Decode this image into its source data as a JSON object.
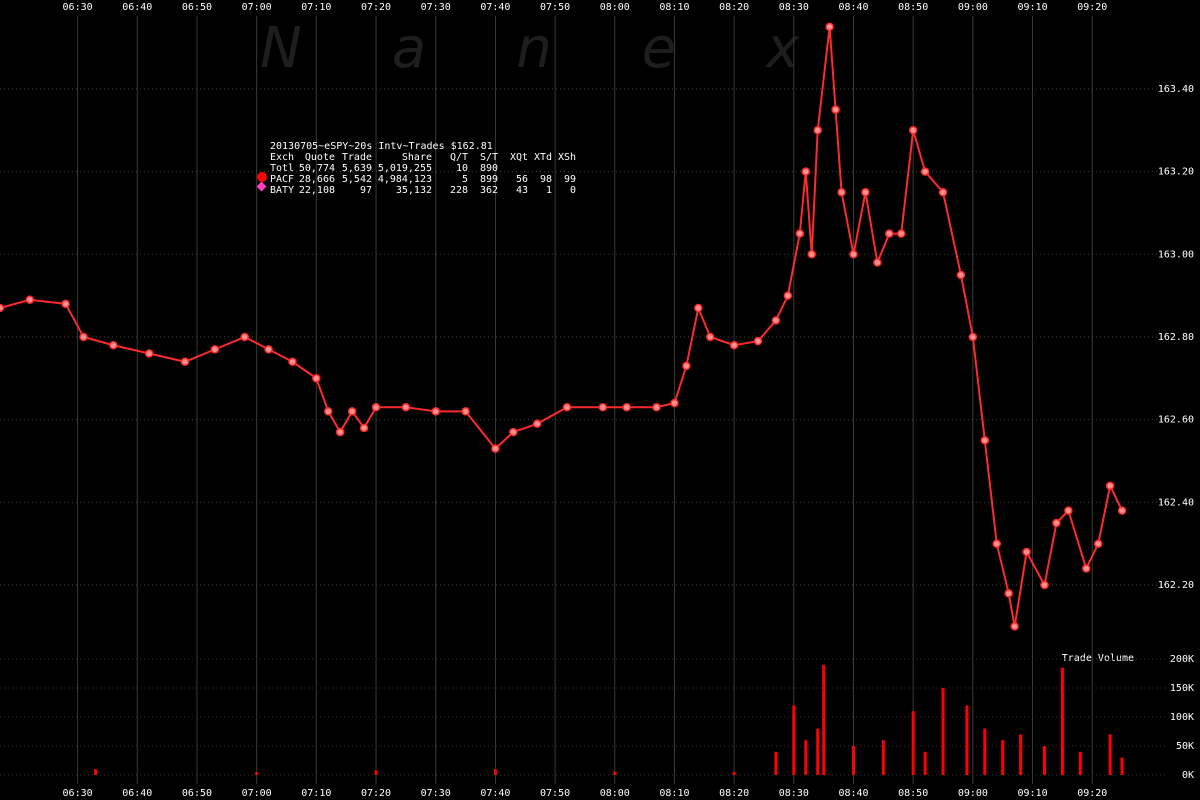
{
  "chart_data": {
    "type": "line",
    "watermark": "Nanex",
    "title": "20130705~eSPY~20s Intv~Trades $162.81",
    "legend_table": {
      "header": [
        "Exch",
        "Quote",
        "Trade",
        "Share",
        "Q/T",
        "S/T",
        "XQt",
        "XTd",
        "XSh"
      ],
      "rows": [
        [
          "Totl",
          "50,774",
          "5,639",
          "5,019,255",
          "10",
          "890"
        ],
        [
          "PACF",
          "28,666",
          "5,542",
          "4,984,123",
          "5",
          "899",
          "56",
          "98",
          "99"
        ],
        [
          "BATY",
          "22,108",
          "97",
          "35,132",
          "228",
          "362",
          "43",
          "1",
          "0"
        ]
      ]
    },
    "xlim": [
      "06:17",
      "09:28"
    ],
    "xticks": [
      "06:30",
      "06:40",
      "06:50",
      "07:00",
      "07:10",
      "07:20",
      "07:30",
      "07:40",
      "07:50",
      "08:00",
      "08:10",
      "08:20",
      "08:30",
      "08:40",
      "08:50",
      "09:00",
      "09:10",
      "09:20"
    ],
    "ylim": [
      162.055,
      163.615
    ],
    "yticks": [
      {
        "value": 162.2,
        "label": "162.20"
      },
      {
        "value": 162.4,
        "label": "162.40"
      },
      {
        "value": 162.6,
        "label": "162.60"
      },
      {
        "value": 162.8,
        "label": "162.80"
      },
      {
        "value": 163.0,
        "label": "163.00"
      },
      {
        "value": 163.2,
        "label": "163.20"
      },
      {
        "value": 163.4,
        "label": "163.40"
      }
    ],
    "x": [
      "06:17",
      "06:22",
      "06:28",
      "06:31",
      "06:36",
      "06:42",
      "06:48",
      "06:53",
      "06:58",
      "07:02",
      "07:06",
      "07:10",
      "07:12",
      "07:14",
      "07:16",
      "07:18",
      "07:20",
      "07:25",
      "07:30",
      "07:35",
      "07:40",
      "07:43",
      "07:47",
      "07:52",
      "07:58",
      "08:02",
      "08:07",
      "08:10",
      "08:12",
      "08:14",
      "08:16",
      "08:20",
      "08:24",
      "08:27",
      "08:29",
      "08:31",
      "08:32",
      "08:33",
      "08:34",
      "08:36",
      "08:37",
      "08:38",
      "08:40",
      "08:42",
      "08:44",
      "08:46",
      "08:48",
      "08:50",
      "08:52",
      "08:55",
      "08:58",
      "09:00",
      "09:02",
      "09:04",
      "09:06",
      "09:07",
      "09:09",
      "09:12",
      "09:14",
      "09:16",
      "09:19",
      "09:21",
      "09:23",
      "09:25"
    ],
    "series": [
      {
        "color": "#ff2a2a",
        "values": [
          162.87,
          162.89,
          162.88,
          162.8,
          162.78,
          162.76,
          162.74,
          162.77,
          162.8,
          162.77,
          162.74,
          162.7,
          162.62,
          162.57,
          162.62,
          162.58,
          162.63,
          162.63,
          162.62,
          162.62,
          162.53,
          162.57,
          162.59,
          162.63,
          162.63,
          162.63,
          162.63,
          162.64,
          162.73,
          162.87,
          162.8,
          162.78,
          162.79,
          162.84,
          162.9,
          163.05,
          163.2,
          163.0,
          163.3,
          163.55,
          163.35,
          163.15,
          163.0,
          163.15,
          162.98,
          163.05,
          163.05,
          163.3,
          163.2,
          163.15,
          162.95,
          162.8,
          162.55,
          162.3,
          162.18,
          162.1,
          162.28,
          162.2,
          162.35,
          162.38,
          162.24,
          162.3,
          162.44,
          162.38
        ]
      }
    ],
    "volume": {
      "type": "bar",
      "title": "Trade Volume",
      "color": "#ff0000",
      "ylim": [
        0,
        200000
      ],
      "yticks": [
        {
          "value": 0,
          "label": "0K"
        },
        {
          "value": 50000,
          "label": "50K"
        },
        {
          "value": 100000,
          "label": "100K"
        },
        {
          "value": 150000,
          "label": "150K"
        },
        {
          "value": 200000,
          "label": "200K"
        }
      ],
      "x": [
        "06:33",
        "07:00",
        "07:20",
        "07:40",
        "08:00",
        "08:20",
        "08:27",
        "08:30",
        "08:32",
        "08:34",
        "08:35",
        "08:40",
        "08:45",
        "08:50",
        "08:52",
        "08:55",
        "08:59",
        "09:02",
        "09:05",
        "09:08",
        "09:12",
        "09:15",
        "09:18",
        "09:23",
        "09:25"
      ],
      "values": [
        10000,
        5000,
        8000,
        10000,
        6000,
        5000,
        40000,
        120000,
        60000,
        80000,
        190000,
        50000,
        60000,
        110000,
        40000,
        150000,
        120000,
        80000,
        60000,
        70000,
        50000,
        185000,
        40000,
        70000,
        30000
      ]
    }
  }
}
